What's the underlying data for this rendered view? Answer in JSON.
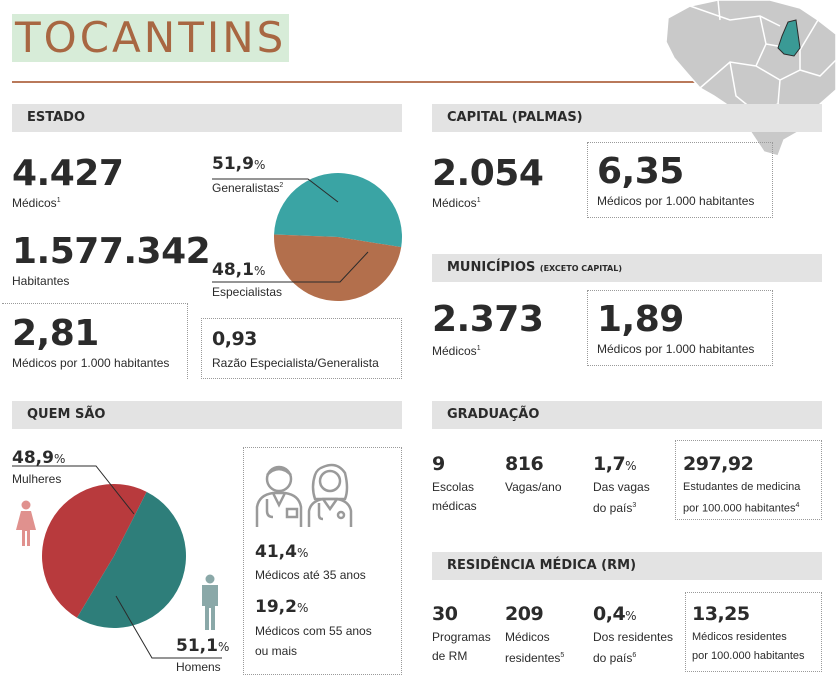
{
  "title": "TOCANTINS",
  "colors": {
    "accent": "#a86742",
    "title_bg": "#d7ecd8",
    "teal": "#3aa4a4",
    "brown": "#b36f4c",
    "red": "#b83a3d",
    "dark_teal": "#2e7e7a",
    "female": "#e0918e",
    "male": "#8aa8a8"
  },
  "estado": {
    "header": "ESTADO",
    "medicos": {
      "value": "4.427",
      "label": "Médicos",
      "note": "1"
    },
    "habitantes": {
      "value": "1.577.342",
      "label": "Habitantes"
    },
    "ratio": {
      "value": "2,81",
      "label": "Médicos por 1.000 habitantes"
    },
    "razao": {
      "value": "0,93",
      "label": "Razão Especialista/Generalista"
    },
    "pie": {
      "generalistas": {
        "value": "51,9",
        "unit": "%",
        "label": "Generalistas",
        "note": "2",
        "share": 0.519
      },
      "especialistas": {
        "value": "48,1",
        "unit": "%",
        "label": "Especialistas",
        "share": 0.481
      }
    }
  },
  "capital": {
    "header": "CAPITAL (PALMAS)",
    "medicos": {
      "value": "2.054",
      "label": "Médicos",
      "note": "1"
    },
    "ratio": {
      "value": "6,35",
      "label": "Médicos por 1.000 habitantes"
    }
  },
  "municipios": {
    "header": "MUNICÍPIOS",
    "header_small": "(EXCETO CAPITAL)",
    "medicos": {
      "value": "2.373",
      "label": "Médicos",
      "note": "1"
    },
    "ratio": {
      "value": "1,89",
      "label": "Médicos por 1.000 habitantes"
    }
  },
  "quem_sao": {
    "header": "QUEM SÃO",
    "mulheres": {
      "value": "48,9",
      "unit": "%",
      "label": "Mulheres",
      "share": 0.489
    },
    "homens": {
      "value": "51,1",
      "unit": "%",
      "label": "Homens",
      "share": 0.511
    },
    "ate35": {
      "value": "41,4",
      "unit": "%",
      "label": "Médicos até 35 anos"
    },
    "mais55": {
      "value": "19,2",
      "unit": "%",
      "label1": "Médicos com 55 anos",
      "label2": "ou mais"
    }
  },
  "graduacao": {
    "header": "GRADUAÇÃO",
    "escolas": {
      "value": "9",
      "label1": "Escolas",
      "label2": "médicas"
    },
    "vagas": {
      "value": "816",
      "label": "Vagas/ano"
    },
    "share": {
      "value": "1,7",
      "unit": "%",
      "label1": "Das vagas",
      "label2": "do país",
      "note": "3"
    },
    "estudantes": {
      "value": "297,92",
      "label1": "Estudantes de medicina",
      "label2": "por 100.000 habitantes",
      "note": "4"
    }
  },
  "residencia": {
    "header": "RESIDÊNCIA MÉDICA (RM)",
    "programas": {
      "value": "30",
      "label1": "Programas",
      "label2": "de RM"
    },
    "residentes": {
      "value": "209",
      "label1": "Médicos",
      "label2": "residentes",
      "note": "5"
    },
    "share": {
      "value": "0,4",
      "unit": "%",
      "label1": "Dos residentes",
      "label2": "do país",
      "note": "6"
    },
    "por100": {
      "value": "13,25",
      "label1": "Médicos residentes",
      "label2": "por 100.000 habitantes"
    }
  }
}
